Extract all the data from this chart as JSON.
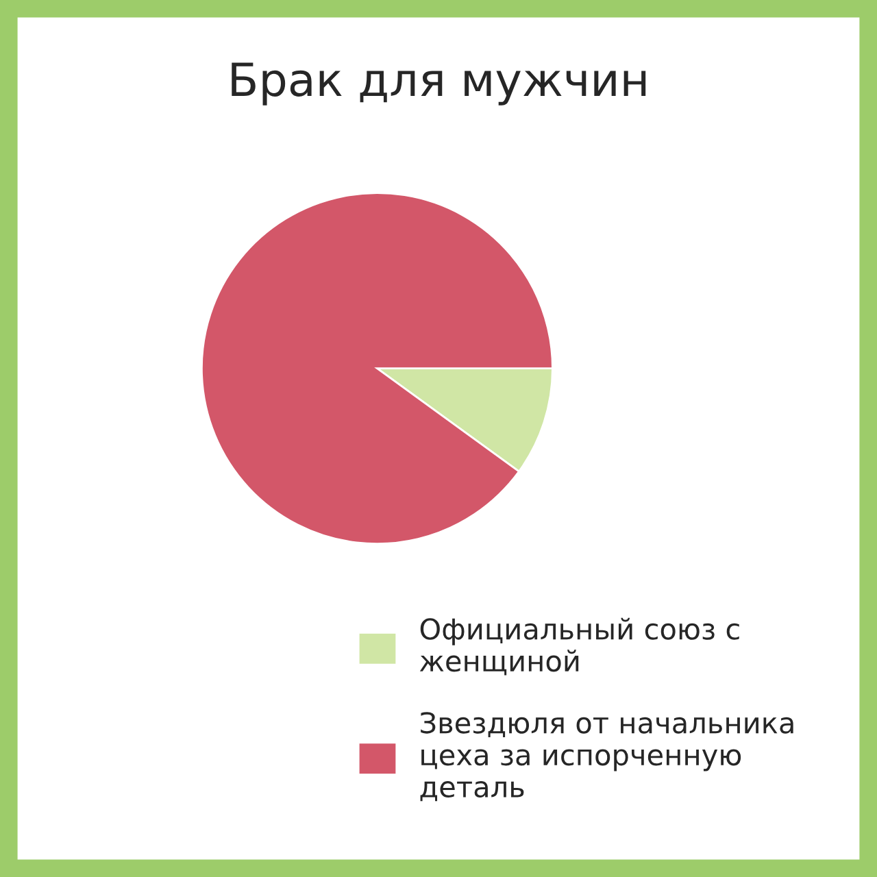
{
  "chart_data": {
    "type": "pie",
    "title": "Брак для мужчин",
    "categories": [
      "Официальный союз с женщиной",
      "Звездюля от начальника цеха за испорченную деталь"
    ],
    "values": [
      10,
      90
    ],
    "colors": [
      "#d0e6a5",
      "#d35769"
    ],
    "legend": "bottom right"
  }
}
